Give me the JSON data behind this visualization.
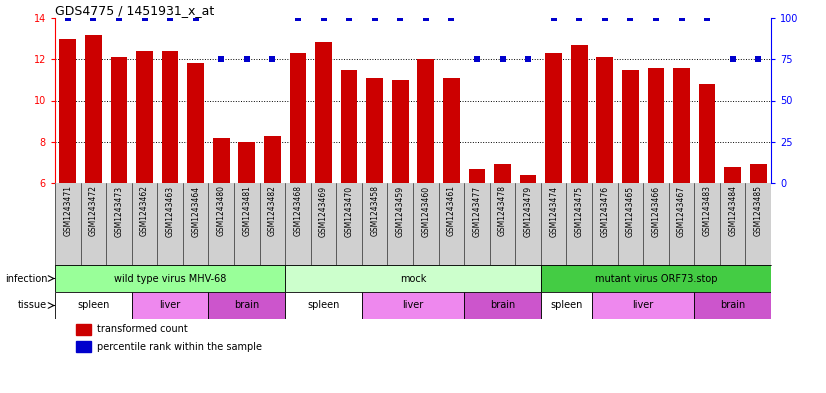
{
  "title": "GDS4775 / 1451931_x_at",
  "samples": [
    "GSM1243471",
    "GSM1243472",
    "GSM1243473",
    "GSM1243462",
    "GSM1243463",
    "GSM1243464",
    "GSM1243480",
    "GSM1243481",
    "GSM1243482",
    "GSM1243468",
    "GSM1243469",
    "GSM1243470",
    "GSM1243458",
    "GSM1243459",
    "GSM1243460",
    "GSM1243461",
    "GSM1243477",
    "GSM1243478",
    "GSM1243479",
    "GSM1243474",
    "GSM1243475",
    "GSM1243476",
    "GSM1243465",
    "GSM1243466",
    "GSM1243467",
    "GSM1243483",
    "GSM1243484",
    "GSM1243485"
  ],
  "bar_values": [
    13.0,
    13.2,
    12.1,
    12.4,
    12.4,
    11.8,
    8.2,
    8.0,
    8.3,
    12.3,
    12.85,
    11.5,
    11.1,
    11.0,
    12.0,
    11.1,
    6.7,
    6.9,
    6.4,
    12.3,
    12.7,
    12.1,
    11.5,
    11.6,
    11.6,
    10.8,
    6.8,
    6.9
  ],
  "percentile_values": [
    100,
    100,
    100,
    100,
    100,
    100,
    75,
    75,
    75,
    100,
    100,
    100,
    100,
    100,
    100,
    100,
    75,
    75,
    75,
    100,
    100,
    100,
    100,
    100,
    100,
    100,
    75,
    75
  ],
  "ylim_left": [
    6,
    14
  ],
  "ylim_right": [
    0,
    100
  ],
  "yticks_left": [
    6,
    8,
    10,
    12,
    14
  ],
  "yticks_right": [
    0,
    25,
    50,
    75,
    100
  ],
  "bar_color": "#cc0000",
  "dot_color": "#0000cc",
  "background_color": "#ffffff",
  "infection_groups": [
    {
      "label": "wild type virus MHV-68",
      "start": 0,
      "end": 9,
      "color": "#99ff99"
    },
    {
      "label": "mock",
      "start": 9,
      "end": 19,
      "color": "#ccffcc"
    },
    {
      "label": "mutant virus ORF73.stop",
      "start": 19,
      "end": 28,
      "color": "#44cc44"
    }
  ],
  "tissue_groups": [
    {
      "label": "spleen",
      "start": 0,
      "end": 3,
      "color": "#ffffff"
    },
    {
      "label": "liver",
      "start": 3,
      "end": 6,
      "color": "#ee88ee"
    },
    {
      "label": "brain",
      "start": 6,
      "end": 9,
      "color": "#cc55cc"
    },
    {
      "label": "spleen",
      "start": 9,
      "end": 12,
      "color": "#ffffff"
    },
    {
      "label": "liver",
      "start": 12,
      "end": 16,
      "color": "#ee88ee"
    },
    {
      "label": "brain",
      "start": 16,
      "end": 19,
      "color": "#cc55cc"
    },
    {
      "label": "spleen",
      "start": 19,
      "end": 21,
      "color": "#ffffff"
    },
    {
      "label": "liver",
      "start": 21,
      "end": 25,
      "color": "#ee88ee"
    },
    {
      "label": "brain",
      "start": 25,
      "end": 28,
      "color": "#cc55cc"
    }
  ],
  "left_label": "infection",
  "tissue_label": "tissue",
  "legend_items": [
    {
      "label": "transformed count",
      "color": "#cc0000"
    },
    {
      "label": "percentile rank within the sample",
      "color": "#0000cc"
    }
  ],
  "xlabel_bg": "#d0d0d0"
}
